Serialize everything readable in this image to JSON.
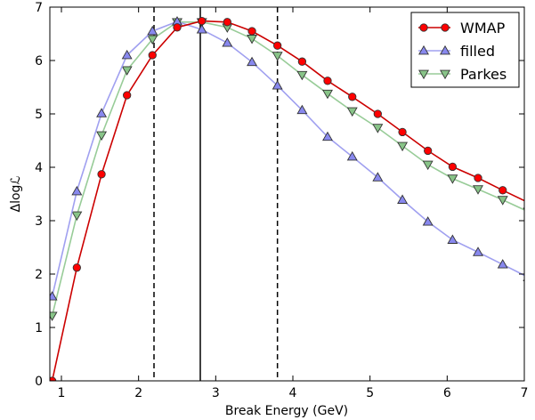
{
  "chart_data": {
    "type": "line",
    "title": "",
    "xlabel": "Break Energy (GeV)",
    "ylabel": "Δlogℒ",
    "xlim": [
      0.85,
      7.0
    ],
    "ylim": [
      0,
      7
    ],
    "xticks": [
      1,
      2,
      3,
      4,
      5,
      6,
      7
    ],
    "yticks": [
      0,
      1,
      2,
      3,
      4,
      5,
      6,
      7
    ],
    "grid": false,
    "legend_position": "top-right",
    "vertical_lines": [
      {
        "x": 2.2,
        "style": "dashed",
        "color": "#000000"
      },
      {
        "x": 2.8,
        "style": "solid",
        "color": "#000000"
      },
      {
        "x": 3.8,
        "style": "dashed",
        "color": "#000000"
      }
    ],
    "x": [
      0.88,
      1.2,
      1.52,
      1.85,
      2.18,
      2.5,
      2.82,
      3.15,
      3.47,
      3.8,
      4.12,
      4.45,
      4.77,
      5.1,
      5.42,
      5.75,
      6.07,
      6.4,
      6.72,
      7.05
    ],
    "series": [
      {
        "name": "WMAP",
        "color": "#ff0000",
        "line_color": "#cc0000",
        "marker": "circle",
        "values": [
          0.0,
          2.12,
          3.87,
          5.35,
          6.1,
          6.62,
          6.74,
          6.72,
          6.55,
          6.28,
          5.98,
          5.62,
          5.32,
          5.0,
          4.66,
          4.31,
          4.01,
          3.8,
          3.57,
          3.34
        ]
      },
      {
        "name": "filled",
        "color": "#8888ee",
        "line_color": "#a0a0f0",
        "marker": "triangle-up",
        "values": [
          1.58,
          3.55,
          5.01,
          6.1,
          6.55,
          6.73,
          6.58,
          6.33,
          5.97,
          5.53,
          5.07,
          4.57,
          4.2,
          3.81,
          3.39,
          2.98,
          2.64,
          2.41,
          2.18,
          1.94
        ]
      },
      {
        "name": "Parkes",
        "color": "#88c488",
        "line_color": "#98cc98",
        "marker": "triangle-down",
        "values": [
          1.22,
          3.1,
          4.6,
          5.82,
          6.4,
          6.72,
          6.72,
          6.62,
          6.41,
          6.09,
          5.73,
          5.38,
          5.05,
          4.74,
          4.4,
          4.05,
          3.79,
          3.59,
          3.39,
          3.17
        ]
      }
    ]
  }
}
